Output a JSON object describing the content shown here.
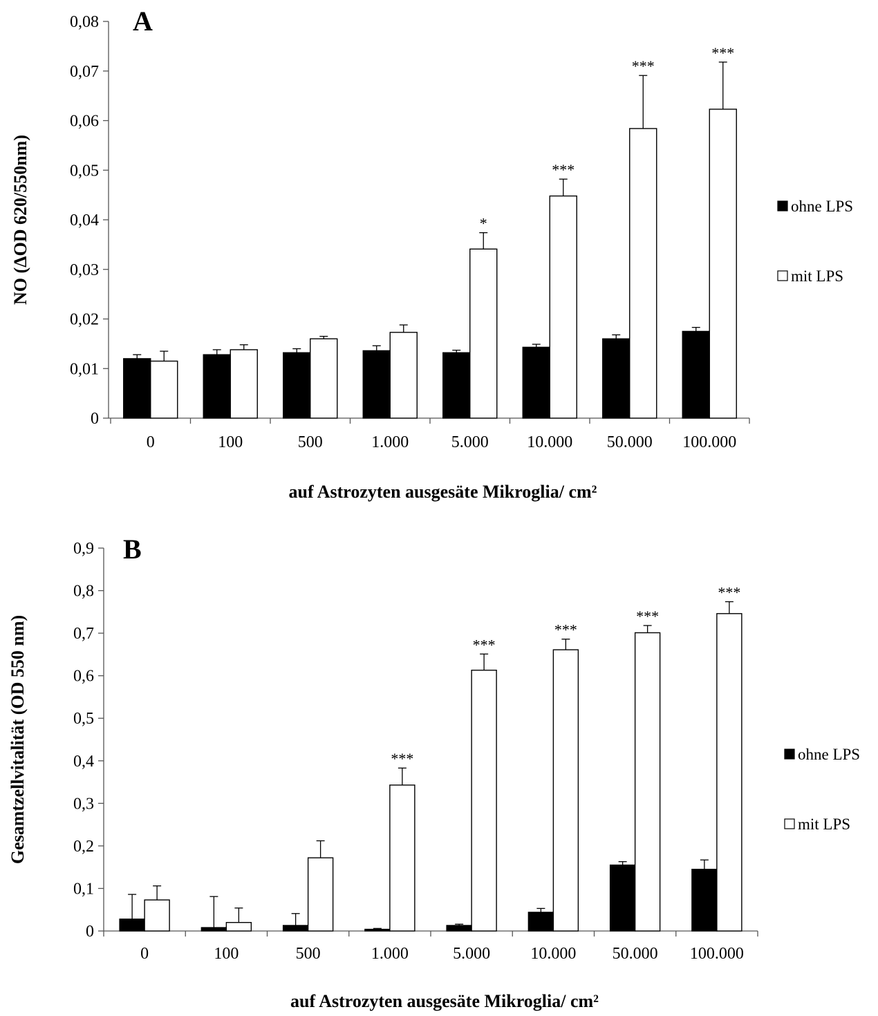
{
  "chart_data": [
    {
      "type": "bar",
      "panel_label": "A",
      "categories": [
        "0",
        "100",
        "500",
        "1.000",
        "5.000",
        "10.000",
        "50.000",
        "100.000"
      ],
      "series": [
        {
          "name": "ohne LPS",
          "values": [
            0.012,
            0.0128,
            0.0132,
            0.0136,
            0.0132,
            0.0143,
            0.016,
            0.0175
          ],
          "errors": [
            0.0008,
            0.001,
            0.0008,
            0.001,
            0.0005,
            0.0006,
            0.0008,
            0.0008
          ],
          "color": "#000000"
        },
        {
          "name": "mit LPS",
          "values": [
            0.0115,
            0.0138,
            0.016,
            0.0173,
            0.0341,
            0.0448,
            0.0584,
            0.0623
          ],
          "errors": [
            0.002,
            0.001,
            0.0005,
            0.0015,
            0.0033,
            0.0034,
            0.0107,
            0.0095
          ],
          "color": "#ffffff"
        }
      ],
      "significance": [
        "",
        "",
        "",
        "",
        "*",
        "***",
        "***",
        "***"
      ],
      "xlabel": "auf Astrozyten ausgesäte Mikroglia/ cm²",
      "ylabel": "NO (ΔOD 620/550nm)",
      "ylim": [
        0,
        0.08
      ],
      "yticks": [
        "0",
        "0,01",
        "0,02",
        "0,03",
        "0,04",
        "0,05",
        "0,06",
        "0,07",
        "0,08"
      ],
      "grid": false,
      "legend_position": "right"
    },
    {
      "type": "bar",
      "panel_label": "B",
      "categories": [
        "0",
        "100",
        "500",
        "1.000",
        "5.000",
        "10.000",
        "50.000",
        "100.000"
      ],
      "series": [
        {
          "name": "ohne LPS",
          "values": [
            0.028,
            0.008,
            0.013,
            0.004,
            0.013,
            0.044,
            0.155,
            0.145
          ],
          "errors": [
            0.058,
            0.073,
            0.028,
            0.002,
            0.003,
            0.009,
            0.008,
            0.022
          ],
          "color": "#000000"
        },
        {
          "name": "mit LPS",
          "values": [
            0.073,
            0.02,
            0.172,
            0.343,
            0.613,
            0.661,
            0.701,
            0.746
          ],
          "errors": [
            0.033,
            0.034,
            0.04,
            0.04,
            0.038,
            0.025,
            0.017,
            0.028
          ],
          "color": "#ffffff"
        }
      ],
      "significance": [
        "",
        "",
        "",
        "***",
        "***",
        "***",
        "***",
        "***"
      ],
      "xlabel": "auf Astrozyten ausgesäte Mikroglia/ cm²",
      "ylabel": "Gesamtzellvitalität (OD 550 nm)",
      "ylim": [
        0,
        0.9
      ],
      "yticks": [
        "0",
        "0,1",
        "0,2",
        "0,3",
        "0,4",
        "0,5",
        "0,6",
        "0,7",
        "0,8",
        "0,9"
      ],
      "grid": false,
      "legend_position": "right"
    }
  ]
}
